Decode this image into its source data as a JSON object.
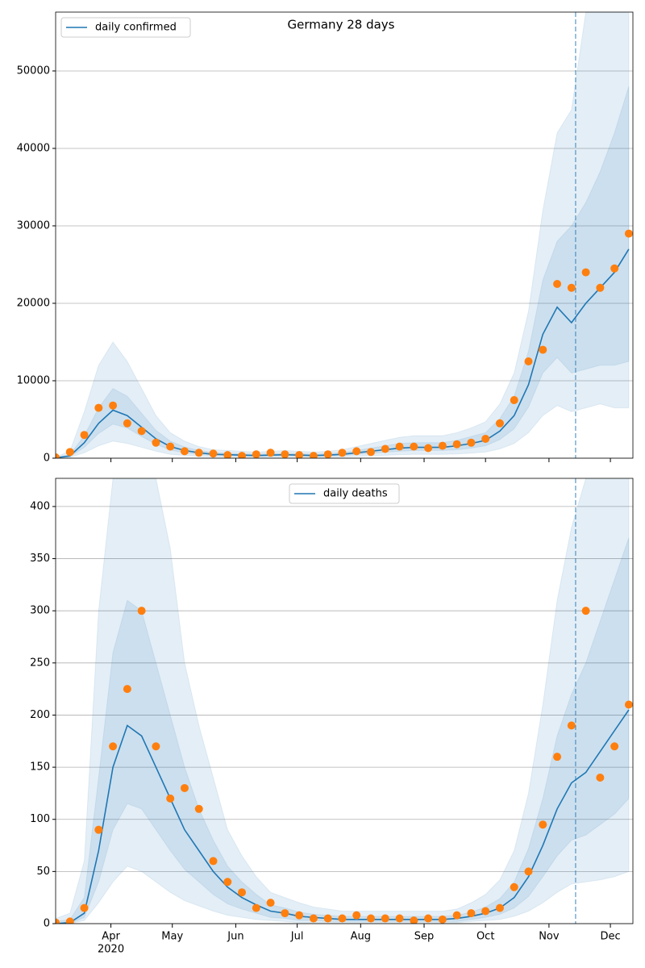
{
  "chart_data": [
    {
      "type": "line",
      "title": "Germany 28 days",
      "x": [
        "2020-03-05",
        "2020-03-12",
        "2020-03-19",
        "2020-03-26",
        "2020-04-02",
        "2020-04-09",
        "2020-04-16",
        "2020-04-23",
        "2020-04-30",
        "2020-05-07",
        "2020-05-14",
        "2020-05-21",
        "2020-05-28",
        "2020-06-04",
        "2020-06-11",
        "2020-06-18",
        "2020-06-25",
        "2020-07-02",
        "2020-07-09",
        "2020-07-16",
        "2020-07-23",
        "2020-07-30",
        "2020-08-06",
        "2020-08-13",
        "2020-08-20",
        "2020-08-27",
        "2020-09-03",
        "2020-09-10",
        "2020-09-17",
        "2020-09-24",
        "2020-10-01",
        "2020-10-08",
        "2020-10-15",
        "2020-10-22",
        "2020-10-29",
        "2020-11-05",
        "2020-11-12",
        "2020-11-19",
        "2020-11-26",
        "2020-12-03",
        "2020-12-10"
      ],
      "series": [
        {
          "name": "daily confirmed",
          "color": "#1f77b4",
          "values": [
            50,
            300,
            2000,
            4500,
            6200,
            5500,
            4000,
            2500,
            1500,
            1000,
            700,
            500,
            450,
            400,
            350,
            400,
            450,
            400,
            350,
            400,
            500,
            700,
            900,
            1100,
            1300,
            1400,
            1400,
            1400,
            1600,
            1900,
            2300,
            3500,
            5500,
            9500,
            16000,
            19500,
            17500,
            20000,
            22000,
            24000,
            27000
          ]
        }
      ],
      "observed": {
        "color": "#ff7f0e",
        "values": [
          100,
          800,
          3000,
          6500,
          6800,
          4500,
          3500,
          2000,
          1500,
          900,
          700,
          600,
          400,
          300,
          500,
          700,
          500,
          400,
          300,
          500,
          700,
          900,
          800,
          1200,
          1500,
          1500,
          1300,
          1600,
          1800,
          2000,
          2500,
          4500,
          7500,
          12500,
          14000,
          22500,
          22000,
          24000,
          22000,
          24500,
          29000
        ]
      },
      "band_color": "#1f77b4",
      "bands": [
        {
          "lower": [
            15,
            100,
            700,
            1600,
            2200,
            1900,
            1400,
            900,
            500,
            350,
            250,
            170,
            160,
            140,
            120,
            140,
            160,
            140,
            120,
            140,
            170,
            250,
            300,
            380,
            450,
            500,
            500,
            500,
            550,
            650,
            800,
            1200,
            1900,
            3300,
            5500,
            6800,
            6000,
            6500,
            7000,
            6500,
            6500
          ],
          "upper": [
            150,
            900,
            6000,
            12000,
            15000,
            12500,
            9000,
            5500,
            3300,
            2200,
            1500,
            1100,
            1000,
            900,
            800,
            900,
            1000,
            900,
            800,
            900,
            1100,
            1500,
            1900,
            2300,
            2700,
            2900,
            2900,
            2900,
            3300,
            3900,
            4700,
            7000,
            11000,
            19000,
            32000,
            42000,
            45000,
            57600,
            57600,
            57600,
            57600
          ]
        },
        {
          "lower": [
            35,
            200,
            1400,
            3200,
            4400,
            3900,
            2800,
            1800,
            1050,
            700,
            500,
            350,
            320,
            280,
            250,
            280,
            320,
            280,
            250,
            280,
            350,
            500,
            630,
            770,
            900,
            1000,
            1000,
            1000,
            1100,
            1300,
            1600,
            2400,
            3800,
            6600,
            11000,
            13000,
            11000,
            11500,
            12000,
            12000,
            12500
          ],
          "upper": [
            70,
            450,
            2900,
            6500,
            9000,
            8000,
            5800,
            3600,
            2200,
            1450,
            1000,
            730,
            650,
            580,
            510,
            580,
            650,
            580,
            510,
            580,
            730,
            1000,
            1300,
            1600,
            1900,
            2000,
            2000,
            2000,
            2300,
            2800,
            3300,
            5100,
            8000,
            13800,
            23000,
            28000,
            30000,
            33000,
            37000,
            42000,
            48000
          ]
        }
      ],
      "forecast_start": "2020-11-14",
      "xlim": [
        "2020-03-05",
        "2020-12-12"
      ],
      "xticks": [
        "2020-04-01",
        "2020-05-01",
        "2020-06-01",
        "2020-07-01",
        "2020-08-01",
        "2020-09-01",
        "2020-10-01",
        "2020-11-01",
        "2020-12-01"
      ],
      "ylim": [
        0,
        57600
      ],
      "yticks": [
        0,
        10000,
        20000,
        30000,
        40000,
        50000
      ],
      "grid": true,
      "legend": "upper left"
    },
    {
      "type": "line",
      "x": [
        "2020-03-05",
        "2020-03-12",
        "2020-03-19",
        "2020-03-26",
        "2020-04-02",
        "2020-04-09",
        "2020-04-16",
        "2020-04-23",
        "2020-04-30",
        "2020-05-07",
        "2020-05-14",
        "2020-05-21",
        "2020-05-28",
        "2020-06-04",
        "2020-06-11",
        "2020-06-18",
        "2020-06-25",
        "2020-07-02",
        "2020-07-09",
        "2020-07-16",
        "2020-07-23",
        "2020-07-30",
        "2020-08-06",
        "2020-08-13",
        "2020-08-20",
        "2020-08-27",
        "2020-09-03",
        "2020-09-10",
        "2020-09-17",
        "2020-09-24",
        "2020-10-01",
        "2020-10-08",
        "2020-10-15",
        "2020-10-22",
        "2020-10-29",
        "2020-11-05",
        "2020-11-12",
        "2020-11-19",
        "2020-11-26",
        "2020-12-03",
        "2020-12-10"
      ],
      "series": [
        {
          "name": "daily deaths",
          "color": "#1f77b4",
          "values": [
            0,
            1,
            10,
            70,
            150,
            190,
            180,
            150,
            120,
            90,
            70,
            50,
            35,
            25,
            18,
            12,
            10,
            7,
            6,
            5,
            4,
            4,
            4,
            4,
            4,
            4,
            4,
            4,
            5,
            7,
            10,
            15,
            25,
            45,
            75,
            110,
            135,
            145,
            165,
            185,
            205
          ]
        }
      ],
      "observed": {
        "color": "#ff7f0e",
        "values": [
          1,
          2,
          15,
          90,
          170,
          225,
          300,
          170,
          120,
          130,
          110,
          60,
          40,
          30,
          15,
          20,
          10,
          8,
          5,
          5,
          5,
          8,
          5,
          5,
          5,
          3,
          5,
          4,
          8,
          10,
          12,
          15,
          35,
          50,
          95,
          160,
          190,
          300,
          140,
          170,
          210
        ]
      },
      "band_color": "#1f77b4",
      "bands": [
        {
          "lower": [
            0,
            0,
            3,
            20,
            40,
            55,
            50,
            40,
            30,
            22,
            17,
            12,
            8,
            6,
            4,
            3,
            2,
            1,
            1,
            1,
            1,
            1,
            1,
            1,
            1,
            1,
            1,
            1,
            1,
            2,
            3,
            4,
            7,
            12,
            20,
            30,
            38,
            40,
            42,
            45,
            50
          ],
          "upper": [
            5,
            10,
            60,
            300,
            427,
            427,
            427,
            427,
            360,
            250,
            190,
            140,
            90,
            65,
            45,
            30,
            25,
            20,
            16,
            14,
            12,
            12,
            12,
            12,
            12,
            12,
            12,
            12,
            14,
            20,
            28,
            42,
            70,
            125,
            210,
            310,
            380,
            427,
            427,
            427,
            427
          ]
        },
        {
          "lower": [
            0,
            0,
            6,
            40,
            90,
            115,
            110,
            90,
            70,
            52,
            40,
            28,
            19,
            14,
            10,
            6,
            5,
            3,
            3,
            2,
            2,
            2,
            2,
            2,
            2,
            2,
            2,
            2,
            2,
            4,
            6,
            9,
            15,
            26,
            45,
            65,
            80,
            85,
            95,
            105,
            120
          ],
          "upper": [
            2,
            4,
            25,
            140,
            260,
            310,
            300,
            250,
            200,
            150,
            110,
            80,
            55,
            40,
            28,
            18,
            15,
            11,
            9,
            8,
            7,
            7,
            7,
            7,
            7,
            7,
            7,
            7,
            8,
            11,
            16,
            24,
            40,
            72,
            120,
            180,
            220,
            250,
            290,
            330,
            370
          ]
        }
      ],
      "forecast_start": "2020-11-14",
      "xlim": [
        "2020-03-05",
        "2020-12-12"
      ],
      "xticks": [
        {
          "value": "2020-04-01",
          "label": "Apr"
        },
        {
          "value": "2020-05-01",
          "label": "May"
        },
        {
          "value": "2020-06-01",
          "label": "Jun"
        },
        {
          "value": "2020-07-01",
          "label": "Jul"
        },
        {
          "value": "2020-08-01",
          "label": "Aug"
        },
        {
          "value": "2020-09-01",
          "label": "Sep"
        },
        {
          "value": "2020-10-01",
          "label": "Oct"
        },
        {
          "value": "2020-11-01",
          "label": "Nov"
        },
        {
          "value": "2020-12-01",
          "label": "Dec"
        }
      ],
      "year": "2020",
      "ylim": [
        0,
        427
      ],
      "yticks": [
        0,
        50,
        100,
        150,
        200,
        250,
        300,
        350,
        400
      ],
      "grid": true,
      "legend": "upper center"
    }
  ]
}
